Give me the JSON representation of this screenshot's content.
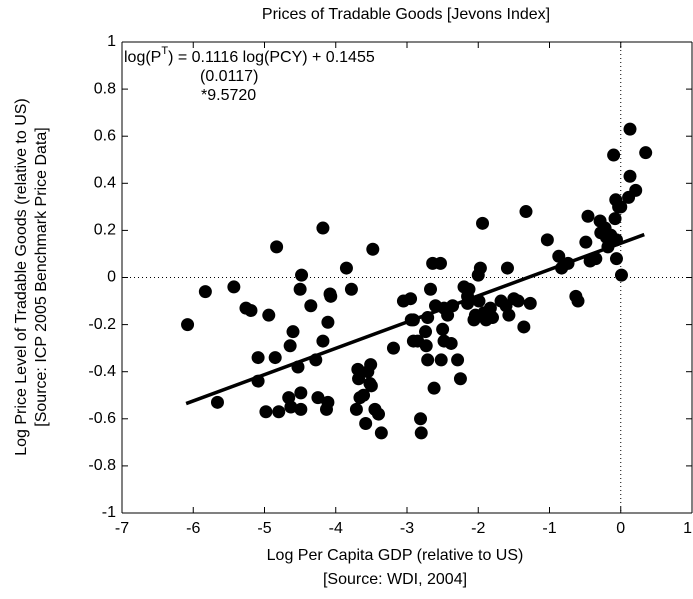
{
  "chart_data": {
    "type": "scatter",
    "title": "Prices of Tradable Goods [Jevons Index]",
    "xlabel": "Log Per Capita GDP (relative to US)",
    "xlabel_source": "[Source: WDI, 2004]",
    "ylabel": "Log Price Level of Tradable Goods (relative to US)",
    "ylabel_source": "[Source: ICP 2005 Benchmark Price Data]",
    "equation": {
      "lhs": "log(P",
      "sup": "T",
      "rhs": ") = 0.1116 log(PCY) + 0.1455"
    },
    "std_error": "(0.0117)",
    "t_stat": "*9.5720",
    "fit": {
      "slope": 0.1116,
      "intercept": 0.1455,
      "x_range": [
        -6.1,
        0.33
      ]
    },
    "ref_lines": {
      "x": 0,
      "y": 0
    },
    "color": "#000000",
    "xlim": [
      -7,
      1
    ],
    "xticks": [
      -7,
      -6,
      -5,
      -4,
      -3,
      -2,
      -1,
      0,
      1
    ],
    "ylim": [
      -1,
      1
    ],
    "yticks": [
      -1,
      -0.8,
      -0.6,
      -0.4,
      -0.2,
      0,
      0.2,
      0.4,
      0.6,
      0.8,
      1
    ],
    "x": [
      -6.08,
      -5.83,
      -5.66,
      -5.43,
      -5.26,
      -5.19,
      -5.09,
      -5.09,
      -4.94,
      -4.98,
      -4.85,
      -4.8,
      -4.83,
      -4.64,
      -4.6,
      -4.66,
      -4.63,
      -4.53,
      -4.49,
      -4.48,
      -4.49,
      -4.5,
      -4.35,
      -4.28,
      -4.25,
      -4.18,
      -4.08,
      -4.11,
      -4.07,
      -4.18,
      -4.11,
      -4.13,
      -3.85,
      -3.78,
      -3.71,
      -3.69,
      -3.68,
      -3.66,
      -3.61,
      -3.58,
      -3.52,
      -3.55,
      -3.5,
      -3.48,
      -3.51,
      -3.45,
      -3.36,
      -3.4,
      -3.19,
      -3.05,
      -2.95,
      -2.94,
      -2.91,
      -2.85,
      -2.91,
      -2.81,
      -2.8,
      -2.74,
      -2.73,
      -2.71,
      -2.71,
      -2.67,
      -2.64,
      -2.6,
      -2.53,
      -2.62,
      -2.5,
      -2.48,
      -2.43,
      -2.38,
      -2.48,
      -2.52,
      -2.36,
      -2.29,
      -2.25,
      -2.15,
      -2.2,
      -2.15,
      -2.13,
      -2.06,
      -2.04,
      -2.0,
      -1.99,
      -1.97,
      -1.94,
      -1.92,
      -1.89,
      -1.83,
      -1.8,
      -1.68,
      -1.61,
      -1.57,
      -1.5,
      -1.44,
      -1.59,
      -1.36,
      -1.33,
      -1.27,
      -1.03,
      -0.87,
      -0.83,
      -0.74,
      -0.63,
      -0.6,
      -0.49,
      -0.46,
      -0.43,
      -0.35,
      -0.29,
      -0.28,
      -0.22,
      -0.2,
      -0.18,
      -0.14,
      -0.1,
      -0.08,
      -0.07,
      -0.03,
      -0.06,
      -0.06,
      0.01,
      0.0,
      0.11,
      0.13,
      0.13,
      0.21,
      0.35
    ],
    "y": [
      -0.2,
      -0.06,
      -0.53,
      -0.04,
      -0.13,
      -0.14,
      -0.34,
      -0.44,
      -0.16,
      -0.57,
      -0.34,
      -0.57,
      0.13,
      -0.29,
      -0.23,
      -0.51,
      -0.55,
      -0.38,
      -0.49,
      0.01,
      -0.56,
      -0.05,
      -0.12,
      -0.35,
      -0.51,
      0.21,
      -0.07,
      -0.19,
      -0.08,
      -0.27,
      -0.53,
      -0.56,
      0.04,
      -0.05,
      -0.56,
      -0.39,
      -0.43,
      -0.51,
      -0.5,
      -0.62,
      -0.45,
      -0.4,
      -0.46,
      0.12,
      -0.37,
      -0.56,
      -0.66,
      -0.58,
      -0.3,
      -0.1,
      -0.09,
      -0.18,
      -0.27,
      -0.27,
      -0.18,
      -0.6,
      -0.66,
      -0.23,
      -0.29,
      -0.35,
      -0.17,
      -0.05,
      0.06,
      -0.12,
      0.06,
      -0.47,
      -0.22,
      -0.27,
      -0.16,
      -0.28,
      -0.13,
      -0.35,
      -0.12,
      -0.35,
      -0.43,
      -0.11,
      -0.04,
      -0.08,
      -0.05,
      -0.18,
      -0.16,
      0.01,
      -0.1,
      0.04,
      0.23,
      -0.15,
      -0.18,
      -0.13,
      -0.17,
      -0.1,
      -0.12,
      -0.16,
      -0.09,
      -0.1,
      0.04,
      -0.21,
      0.28,
      -0.11,
      0.16,
      0.09,
      0.04,
      0.06,
      -0.08,
      -0.1,
      0.15,
      0.26,
      0.07,
      0.08,
      0.24,
      0.19,
      0.21,
      0.17,
      0.13,
      0.18,
      0.52,
      0.25,
      0.33,
      0.3,
      0.08,
      0.16,
      0.01,
      0.3,
      0.34,
      0.63,
      0.43,
      0.37,
      0.53
    ]
  }
}
